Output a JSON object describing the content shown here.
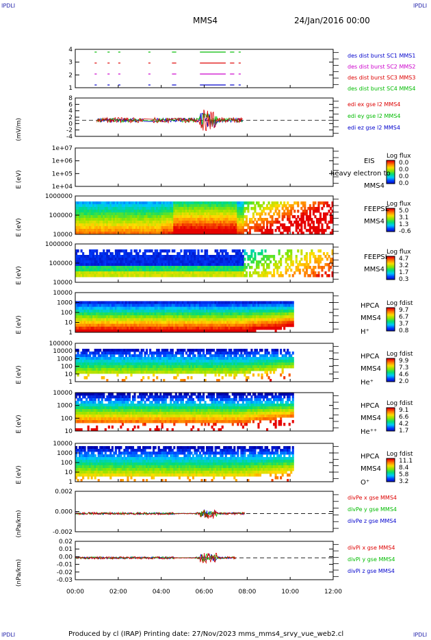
{
  "corner_label": "IPDLI",
  "spacecraft": "MMS4",
  "date": "24/Jan/2016 00:00",
  "footer": "Produced by cl (IRAP)   Printing date: 27/Nov/2023   mms_mms4_srvy_vue_web2.cl",
  "colors": {
    "red": "#dd0000",
    "green": "#00bb00",
    "blue": "#0000cc",
    "magenta": "#cc00cc"
  },
  "chart_data": [
    {
      "type": "line",
      "id": "burst",
      "ylabel": "",
      "yticks": [
        "4",
        "3",
        "2",
        "1"
      ],
      "legend": [
        {
          "text": "des dist burst SC1 MMS1",
          "color": "#0000cc"
        },
        {
          "text": "des dist burst SC2 MMS2",
          "color": "#cc00cc"
        },
        {
          "text": "des dist burst SC3 MMS3",
          "color": "#dd0000"
        },
        {
          "text": "des dist burst SC4 MMS4",
          "color": "#00bb00"
        }
      ]
    },
    {
      "type": "line",
      "id": "edi",
      "ylabel": "(mV/m)",
      "yticks": [
        "8",
        "6",
        "4",
        "2",
        "0",
        "-2",
        "-4"
      ],
      "legend": [
        {
          "text": "edi ex gse l2 MMS4",
          "color": "#dd0000"
        },
        {
          "text": "edi ey gse l2 MMS4",
          "color": "#00bb00"
        },
        {
          "text": "edi ez gse l2 MMS4",
          "color": "#0000cc"
        }
      ]
    },
    {
      "type": "heatmap",
      "id": "eis",
      "ylabel": "E (eV)",
      "yticks": [
        "1e+07",
        "1e+06",
        "1e+05",
        "1e+04"
      ],
      "labels": [
        "EIS",
        "MMS4"
      ],
      "overlay": "heavy electron to",
      "cbar_title": "Log flux",
      "cbar_ticks": [
        "0.0",
        "0.0",
        "0.0",
        "0.0"
      ]
    },
    {
      "type": "heatmap",
      "id": "feepse",
      "ylabel": "E (eV)",
      "yticks": [
        "1000000",
        "100000",
        "10000"
      ],
      "labels": [
        "FEEPSE",
        "MMS4"
      ],
      "cbar_title": "Log flux",
      "cbar_ticks": [
        "5.0",
        "3.1",
        "1.3",
        "-0.6"
      ]
    },
    {
      "type": "heatmap",
      "id": "feepsi",
      "ylabel": "E (eV)",
      "yticks": [
        "1000000",
        "100000",
        "10000"
      ],
      "labels": [
        "FEEPSI",
        "MMS4"
      ],
      "cbar_title": "Log flux",
      "cbar_ticks": [
        "4.7",
        "3.2",
        "1.7",
        "0.3"
      ]
    },
    {
      "type": "heatmap",
      "id": "hpca_h",
      "ylabel": "E (eV)",
      "yticks": [
        "10000",
        "1000",
        "100",
        "10",
        "1"
      ],
      "labels": [
        "HPCA",
        "MMS4",
        "H⁺"
      ],
      "cbar_title": "Log fdist",
      "cbar_ticks": [
        "9.7",
        "6.7",
        "3.7",
        "0.8"
      ]
    },
    {
      "type": "heatmap",
      "id": "hpca_he",
      "ylabel": "E (eV)",
      "yticks": [
        "100000",
        "10000",
        "1000",
        "100",
        "10",
        "1"
      ],
      "labels": [
        "HPCA",
        "MMS4",
        "He⁺"
      ],
      "cbar_title": "Log fdist",
      "cbar_ticks": [
        "9.9",
        "7.3",
        "4.6",
        "2.0"
      ]
    },
    {
      "type": "heatmap",
      "id": "hpca_hepp",
      "ylabel": "E (eV)",
      "yticks": [
        "10000",
        "1000",
        "100",
        "10"
      ],
      "labels": [
        "HPCA",
        "MMS4",
        "He⁺⁺"
      ],
      "cbar_title": "Log fdist",
      "cbar_ticks": [
        "9.1",
        "6.6",
        "4.2",
        "1.7"
      ]
    },
    {
      "type": "heatmap",
      "id": "hpca_o",
      "ylabel": "E (eV)",
      "yticks": [
        "10000",
        "1000",
        "100",
        "10",
        "1"
      ],
      "labels": [
        "HPCA",
        "MMS4",
        "O⁺"
      ],
      "cbar_title": "Log fdist",
      "cbar_ticks": [
        "11.1",
        "8.4",
        "5.8",
        "3.2"
      ]
    },
    {
      "type": "line",
      "id": "divpe",
      "ylabel": "(nPa/km)",
      "yticks": [
        "0.002",
        "0.000",
        "-0.002"
      ],
      "legend": [
        {
          "text": "divPe x gse MMS4",
          "color": "#dd0000"
        },
        {
          "text": "divPe y gse MMS4",
          "color": "#00bb00"
        },
        {
          "text": "divPe z gse MMS4",
          "color": "#0000cc"
        }
      ]
    },
    {
      "type": "line",
      "id": "divpi",
      "ylabel": "(nPa/km)",
      "yticks": [
        "0.02",
        "0.01",
        "0.00",
        "-0.01",
        "-0.02",
        "-0.03"
      ],
      "legend": [
        {
          "text": "divPi x gse MMS4",
          "color": "#dd0000"
        },
        {
          "text": "divPi y gse MMS4",
          "color": "#00bb00"
        },
        {
          "text": "divPi z gse MMS4",
          "color": "#0000cc"
        }
      ]
    }
  ],
  "xaxis": {
    "ticks": [
      "00:00",
      "02:00",
      "04:00",
      "06:00",
      "08:00",
      "10:00",
      "12:00"
    ]
  }
}
